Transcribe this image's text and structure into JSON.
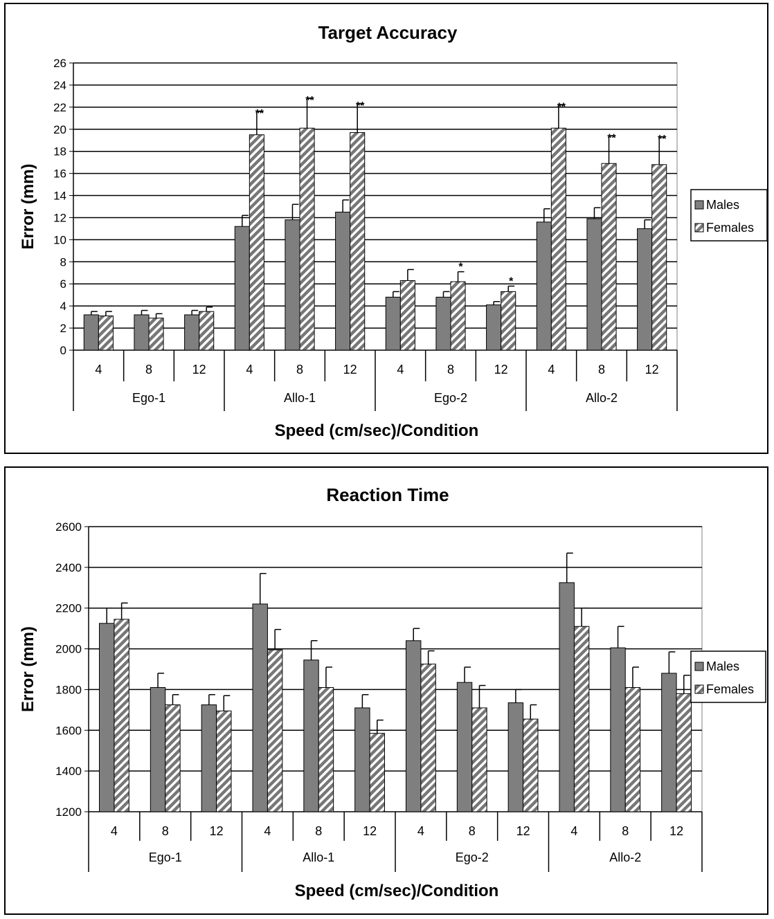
{
  "chart_data": [
    {
      "type": "bar",
      "title": "Target Accuracy",
      "xlabel": "Speed (cm/sec)/Condition",
      "ylabel": "Error (mm)",
      "ylim": [
        0,
        26
      ],
      "ytick_step": 2,
      "grid": true,
      "legend_position": "right",
      "groups": [
        "Ego-1",
        "Allo-1",
        "Ego-2",
        "Allo-2"
      ],
      "categories": [
        "4",
        "8",
        "12",
        "4",
        "8",
        "12",
        "4",
        "8",
        "12",
        "4",
        "8",
        "12"
      ],
      "series": [
        {
          "name": "Males",
          "pattern": "solid",
          "color": "#7f7f7f",
          "values": [
            3.2,
            3.2,
            3.2,
            11.2,
            11.8,
            12.5,
            4.8,
            4.8,
            4.1,
            11.6,
            11.9,
            11.0
          ],
          "errors": [
            0.3,
            0.4,
            0.4,
            1.0,
            1.4,
            1.1,
            0.5,
            0.5,
            0.3,
            1.2,
            1.0,
            0.8
          ]
        },
        {
          "name": "Females",
          "pattern": "hatched",
          "color": "#7f7f7f",
          "values": [
            3.1,
            2.9,
            3.5,
            19.5,
            20.1,
            19.7,
            6.3,
            6.2,
            5.3,
            20.1,
            16.9,
            16.8
          ],
          "errors": [
            0.4,
            0.4,
            0.4,
            2.1,
            2.7,
            2.6,
            1.0,
            0.9,
            0.5,
            2.1,
            2.5,
            2.5
          ]
        }
      ],
      "annotations": [
        "",
        "",
        "",
        "**",
        "**",
        "**",
        "",
        "*",
        "*",
        "**",
        "**",
        "**"
      ]
    },
    {
      "type": "bar",
      "title": "Reaction Time",
      "xlabel": "Speed (cm/sec)/Condition",
      "ylabel": "Error (mm)",
      "ylim": [
        1200,
        2600
      ],
      "ytick_step": 200,
      "grid": true,
      "legend_position": "right",
      "groups": [
        "Ego-1",
        "Allo-1",
        "Ego-2",
        "Allo-2"
      ],
      "categories": [
        "4",
        "8",
        "12",
        "4",
        "8",
        "12",
        "4",
        "8",
        "12",
        "4",
        "8",
        "12"
      ],
      "series": [
        {
          "name": "Males",
          "pattern": "solid",
          "color": "#7f7f7f",
          "values": [
            2125,
            1810,
            1725,
            2220,
            1945,
            1710,
            2040,
            1835,
            1735,
            2325,
            2005,
            1880
          ],
          "errors": [
            75,
            70,
            50,
            150,
            95,
            65,
            60,
            75,
            65,
            145,
            105,
            105
          ]
        },
        {
          "name": "Females",
          "pattern": "hatched",
          "color": "#7f7f7f",
          "values": [
            2145,
            1725,
            1695,
            1995,
            1810,
            1585,
            1925,
            1710,
            1655,
            2110,
            1810,
            1780
          ],
          "errors": [
            80,
            50,
            75,
            100,
            100,
            65,
            65,
            110,
            70,
            90,
            100,
            90
          ]
        }
      ],
      "annotations": [
        "",
        "",
        "",
        "",
        "",
        "",
        "",
        "",
        "",
        "",
        "",
        ""
      ]
    }
  ]
}
